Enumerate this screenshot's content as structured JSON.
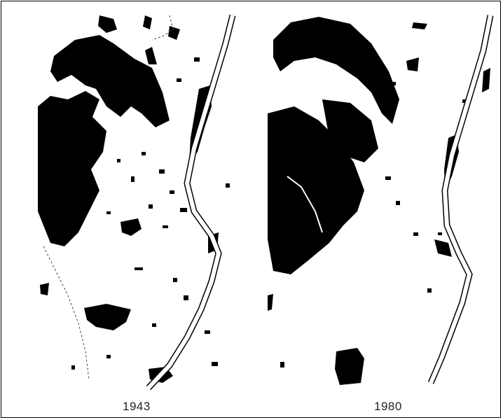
{
  "panels": [
    {
      "year_label": "1943"
    },
    {
      "year_label": "1980"
    }
  ],
  "colors": {
    "forest": "#000000",
    "river": "#ffffff",
    "background": "#ffffff",
    "outline": "#222222"
  }
}
